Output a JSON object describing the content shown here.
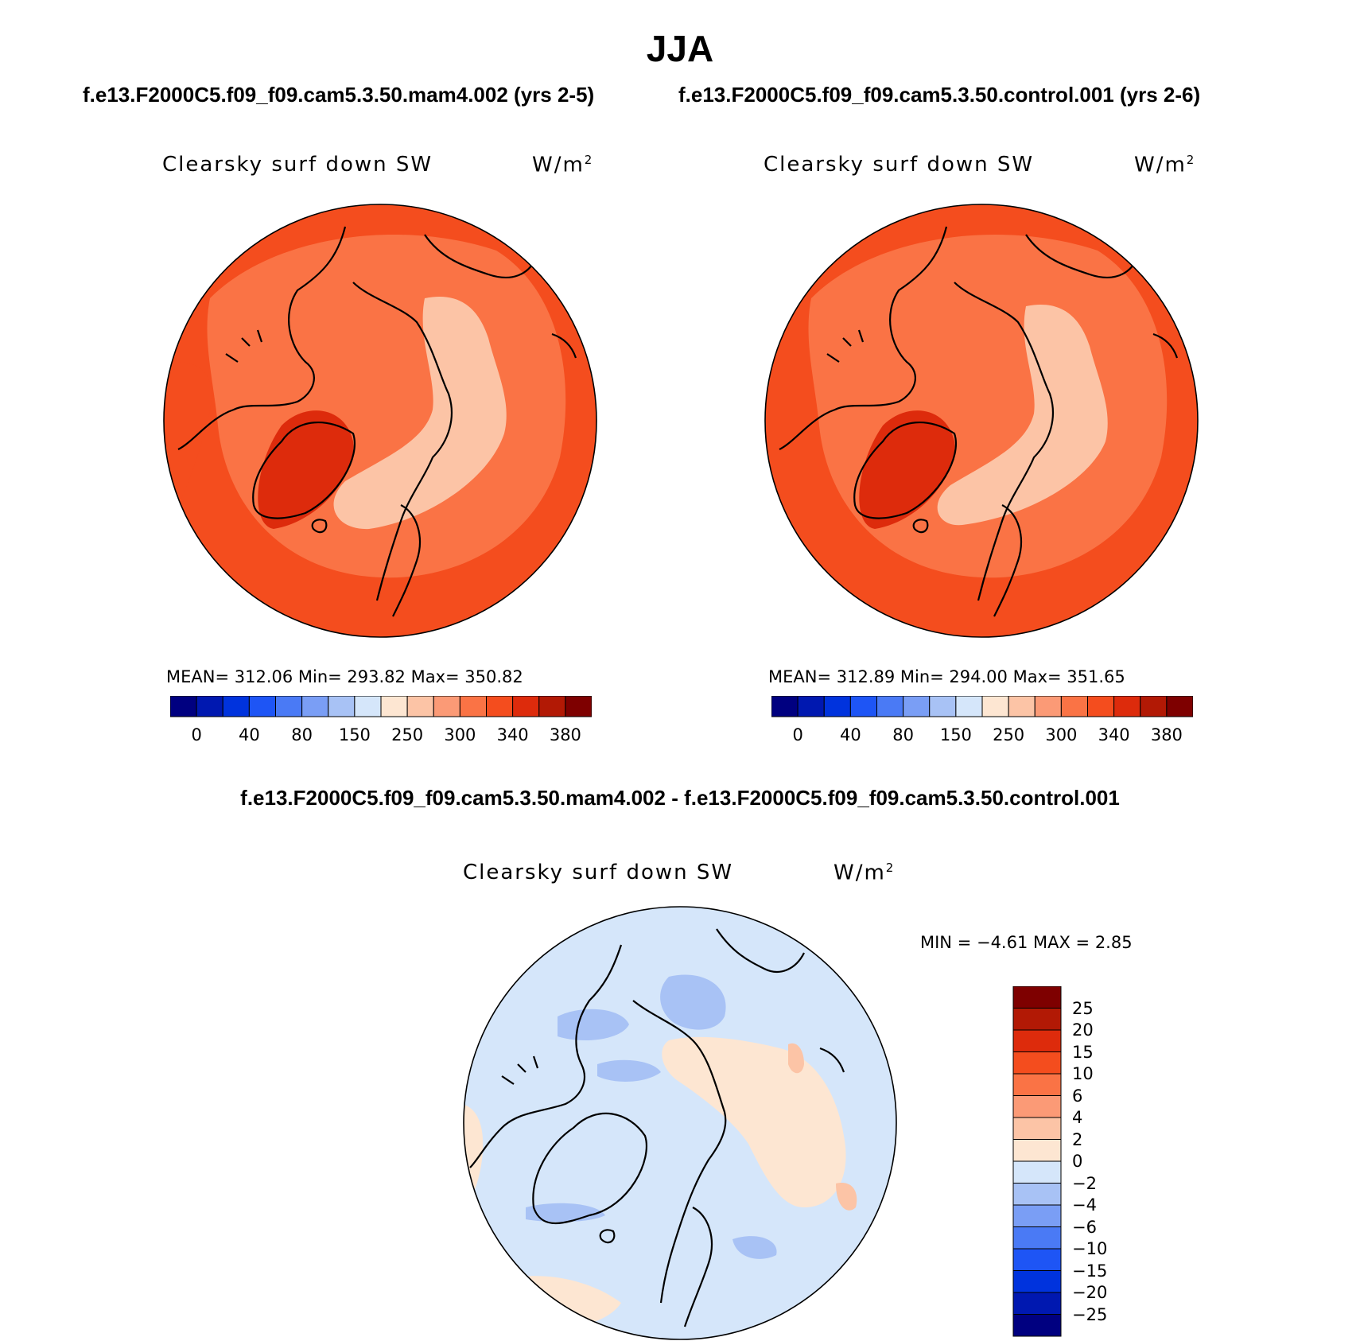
{
  "title": "JJA",
  "subtitle_top_left": "f.e13.F2000C5.f09_f09.cam5.3.50.mam4.002 (yrs 2-5)",
  "subtitle_top_right": "f.e13.F2000C5.f09_f09.cam5.3.50.control.001 (yrs 2-6)",
  "subtitle_bottom": "f.e13.F2000C5.f09_f09.cam5.3.50.mam4.002 - f.e13.F2000C5.f09_f09.cam5.3.50.control.001",
  "panels": [
    {
      "label": "Clearsky surf down SW",
      "unit": "W/m",
      "unit_exp": "2",
      "stats": "MEAN= 312.06   Min= 293.82   Max= 350.82"
    },
    {
      "label": "Clearsky surf down SW",
      "unit": "W/m",
      "unit_exp": "2",
      "stats": "MEAN= 312.89   Min= 294.00   Max= 351.65"
    },
    {
      "label": "Clearsky surf down SW",
      "unit": "W/m",
      "unit_exp": "2",
      "stats": "MIN =   −4.61  MAX =    2.85"
    }
  ],
  "colorbar_main": {
    "colors": [
      "#000080",
      "#0018b0",
      "#0033dd",
      "#1e55f5",
      "#4a7af5",
      "#7a9ef5",
      "#a8c2f5",
      "#d5e6fa",
      "#fde6d2",
      "#fcc4a6",
      "#fb9a76",
      "#fa7345",
      "#f44d1e",
      "#dd2b0c",
      "#b21905",
      "#7e0000"
    ],
    "tick_labels": [
      "0",
      "40",
      "80",
      "150",
      "250",
      "300",
      "340",
      "380"
    ]
  },
  "colorbar_diff": {
    "colors": [
      "#000080",
      "#0018b0",
      "#0033dd",
      "#1e55f5",
      "#4a7af5",
      "#7a9ef5",
      "#a8c2f5",
      "#d5e6fa",
      "#fde6d2",
      "#fcc4a6",
      "#fb9a76",
      "#fa7345",
      "#f44d1e",
      "#dd2b0c",
      "#b21905",
      "#7e0000"
    ],
    "tick_labels": [
      "25",
      "20",
      "15",
      "10",
      "6",
      "4",
      "2",
      "0",
      "−2",
      "−4",
      "−6",
      "−10",
      "−15",
      "−20",
      "−25"
    ]
  },
  "field_colors": {
    "low": "#fb9a76",
    "mid": "#fa7345",
    "high": "#f44d1e",
    "peak": "#dd2b0c",
    "pale": "#fcc4a6",
    "diff_base": "#d5e6fa",
    "diff_neg": "#a8c2f5",
    "diff_pos": "#fde6d2",
    "diff_pos2": "#fcc4a6"
  }
}
